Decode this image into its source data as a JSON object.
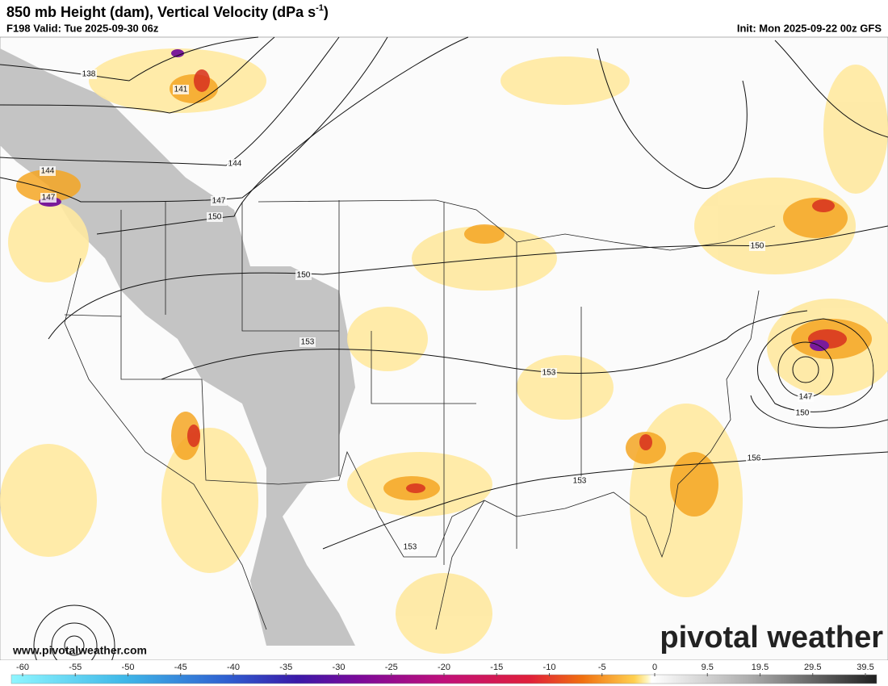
{
  "header": {
    "title": "850 mb Height (dam), Vertical Velocity (dPa s",
    "title_sup": "-1",
    "title_end": ")",
    "valid": "F198 Valid: Tue 2025-09-30 06z",
    "init": "Init: Mon 2025-09-22 00z GFS"
  },
  "map": {
    "contour_labels": [
      "138",
      "141",
      "144",
      "144",
      "147",
      "147",
      "150",
      "150",
      "150",
      "153",
      "153",
      "153",
      "153",
      "156",
      "147",
      "150"
    ],
    "website": "www.pivotalweather.com",
    "watermark": "pivotal weather"
  },
  "colorbar": {
    "ticks": [
      -60,
      -55,
      -50,
      -45,
      -40,
      -35,
      -30,
      -25,
      -20,
      -15,
      -10,
      -5,
      0,
      9.5,
      19.5,
      29.5,
      39.5
    ]
  }
}
